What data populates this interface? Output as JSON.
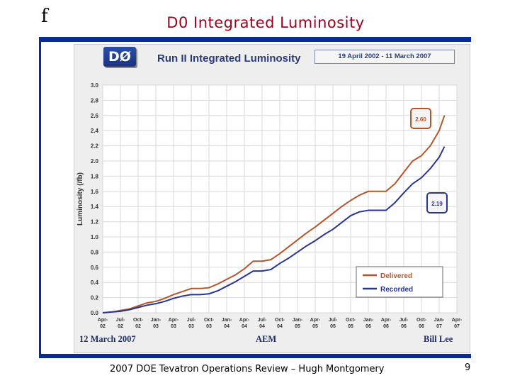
{
  "slide": {
    "corner_mark": "f",
    "title": "D0 Integrated Luminosity",
    "footer": "2007 DOE Tevatron Operations Review – Hugh Montgomery",
    "page_number": "9"
  },
  "figure": {
    "logo_text": "DØ",
    "title": "Run II Integrated Luminosity",
    "date_range": "19 April 2002 - 11 March 2007",
    "footer_left": "12 March 2007",
    "footer_center": "AEM",
    "footer_right": "Bill Lee"
  },
  "colors": {
    "slide_title": "#a0001e",
    "rule": "#0a2a9a",
    "delivered": "#b5562a",
    "recorded": "#2a3590",
    "grid": "#d8d8d8",
    "plot_bg": "#ffffff"
  },
  "chart_data": {
    "type": "line",
    "title": "Run II Integrated Luminosity",
    "ylabel": "Luminosity (/fb)",
    "xlabel": "",
    "ylim": [
      0,
      3.0
    ],
    "yticks": [
      "0.0",
      "0.2",
      "0.4",
      "0.6",
      "0.8",
      "1.0",
      "1.2",
      "1.4",
      "1.6",
      "1.8",
      "2.0",
      "2.2",
      "2.4",
      "2.6",
      "2.8",
      "3.0"
    ],
    "xticks": [
      {
        "top": "Apr-",
        "bottom": "02"
      },
      {
        "top": "Jul-",
        "bottom": "02"
      },
      {
        "top": "Oct-",
        "bottom": "02"
      },
      {
        "top": "Jan-",
        "bottom": "03"
      },
      {
        "top": "Apr-",
        "bottom": "03"
      },
      {
        "top": "Jul-",
        "bottom": "03"
      },
      {
        "top": "Oct-",
        "bottom": "03"
      },
      {
        "top": "Jan-",
        "bottom": "04"
      },
      {
        "top": "Apr-",
        "bottom": "04"
      },
      {
        "top": "Jul-",
        "bottom": "04"
      },
      {
        "top": "Oct-",
        "bottom": "04"
      },
      {
        "top": "Jan-",
        "bottom": "05"
      },
      {
        "top": "Apr-",
        "bottom": "05"
      },
      {
        "top": "Jul-",
        "bottom": "05"
      },
      {
        "top": "Oct-",
        "bottom": "05"
      },
      {
        "top": "Jan-",
        "bottom": "06"
      },
      {
        "top": "Apr-",
        "bottom": "06"
      },
      {
        "top": "Jul-",
        "bottom": "06"
      },
      {
        "top": "Oct-",
        "bottom": "06"
      },
      {
        "top": "Jan-",
        "bottom": "07"
      },
      {
        "top": "Apr-",
        "bottom": "07"
      }
    ],
    "x": [
      0,
      0.5,
      1,
      1.5,
      2,
      2.5,
      3,
      3.5,
      4,
      4.5,
      5,
      5.5,
      6,
      6.5,
      7,
      7.5,
      8,
      8.5,
      9,
      9.5,
      10,
      10.5,
      11,
      11.5,
      12,
      12.5,
      13,
      13.5,
      14,
      14.5,
      15,
      15.5,
      16,
      16.5,
      17,
      17.5,
      18,
      18.5,
      19,
      19.3
    ],
    "series": [
      {
        "name": "Delivered",
        "values": [
          0.0,
          0.01,
          0.03,
          0.05,
          0.09,
          0.13,
          0.15,
          0.19,
          0.24,
          0.28,
          0.32,
          0.32,
          0.33,
          0.38,
          0.44,
          0.5,
          0.58,
          0.68,
          0.68,
          0.7,
          0.78,
          0.87,
          0.96,
          1.05,
          1.13,
          1.22,
          1.31,
          1.4,
          1.48,
          1.55,
          1.6,
          1.6,
          1.6,
          1.7,
          1.85,
          2.0,
          2.07,
          2.2,
          2.4,
          2.6
        ]
      },
      {
        "name": "Recorded",
        "values": [
          0.0,
          0.01,
          0.02,
          0.04,
          0.07,
          0.1,
          0.12,
          0.15,
          0.19,
          0.22,
          0.24,
          0.24,
          0.25,
          0.29,
          0.35,
          0.41,
          0.48,
          0.55,
          0.55,
          0.57,
          0.65,
          0.72,
          0.8,
          0.88,
          0.95,
          1.03,
          1.1,
          1.19,
          1.28,
          1.33,
          1.35,
          1.35,
          1.35,
          1.45,
          1.58,
          1.7,
          1.78,
          1.9,
          2.05,
          2.19
        ]
      }
    ],
    "annotations": [
      {
        "label": "2.60",
        "series": "Delivered"
      },
      {
        "label": "2.19",
        "series": "Recorded"
      }
    ],
    "legend": {
      "position": "bottom-right",
      "entries": [
        "Delivered",
        "Recorded"
      ]
    },
    "grid": true
  }
}
